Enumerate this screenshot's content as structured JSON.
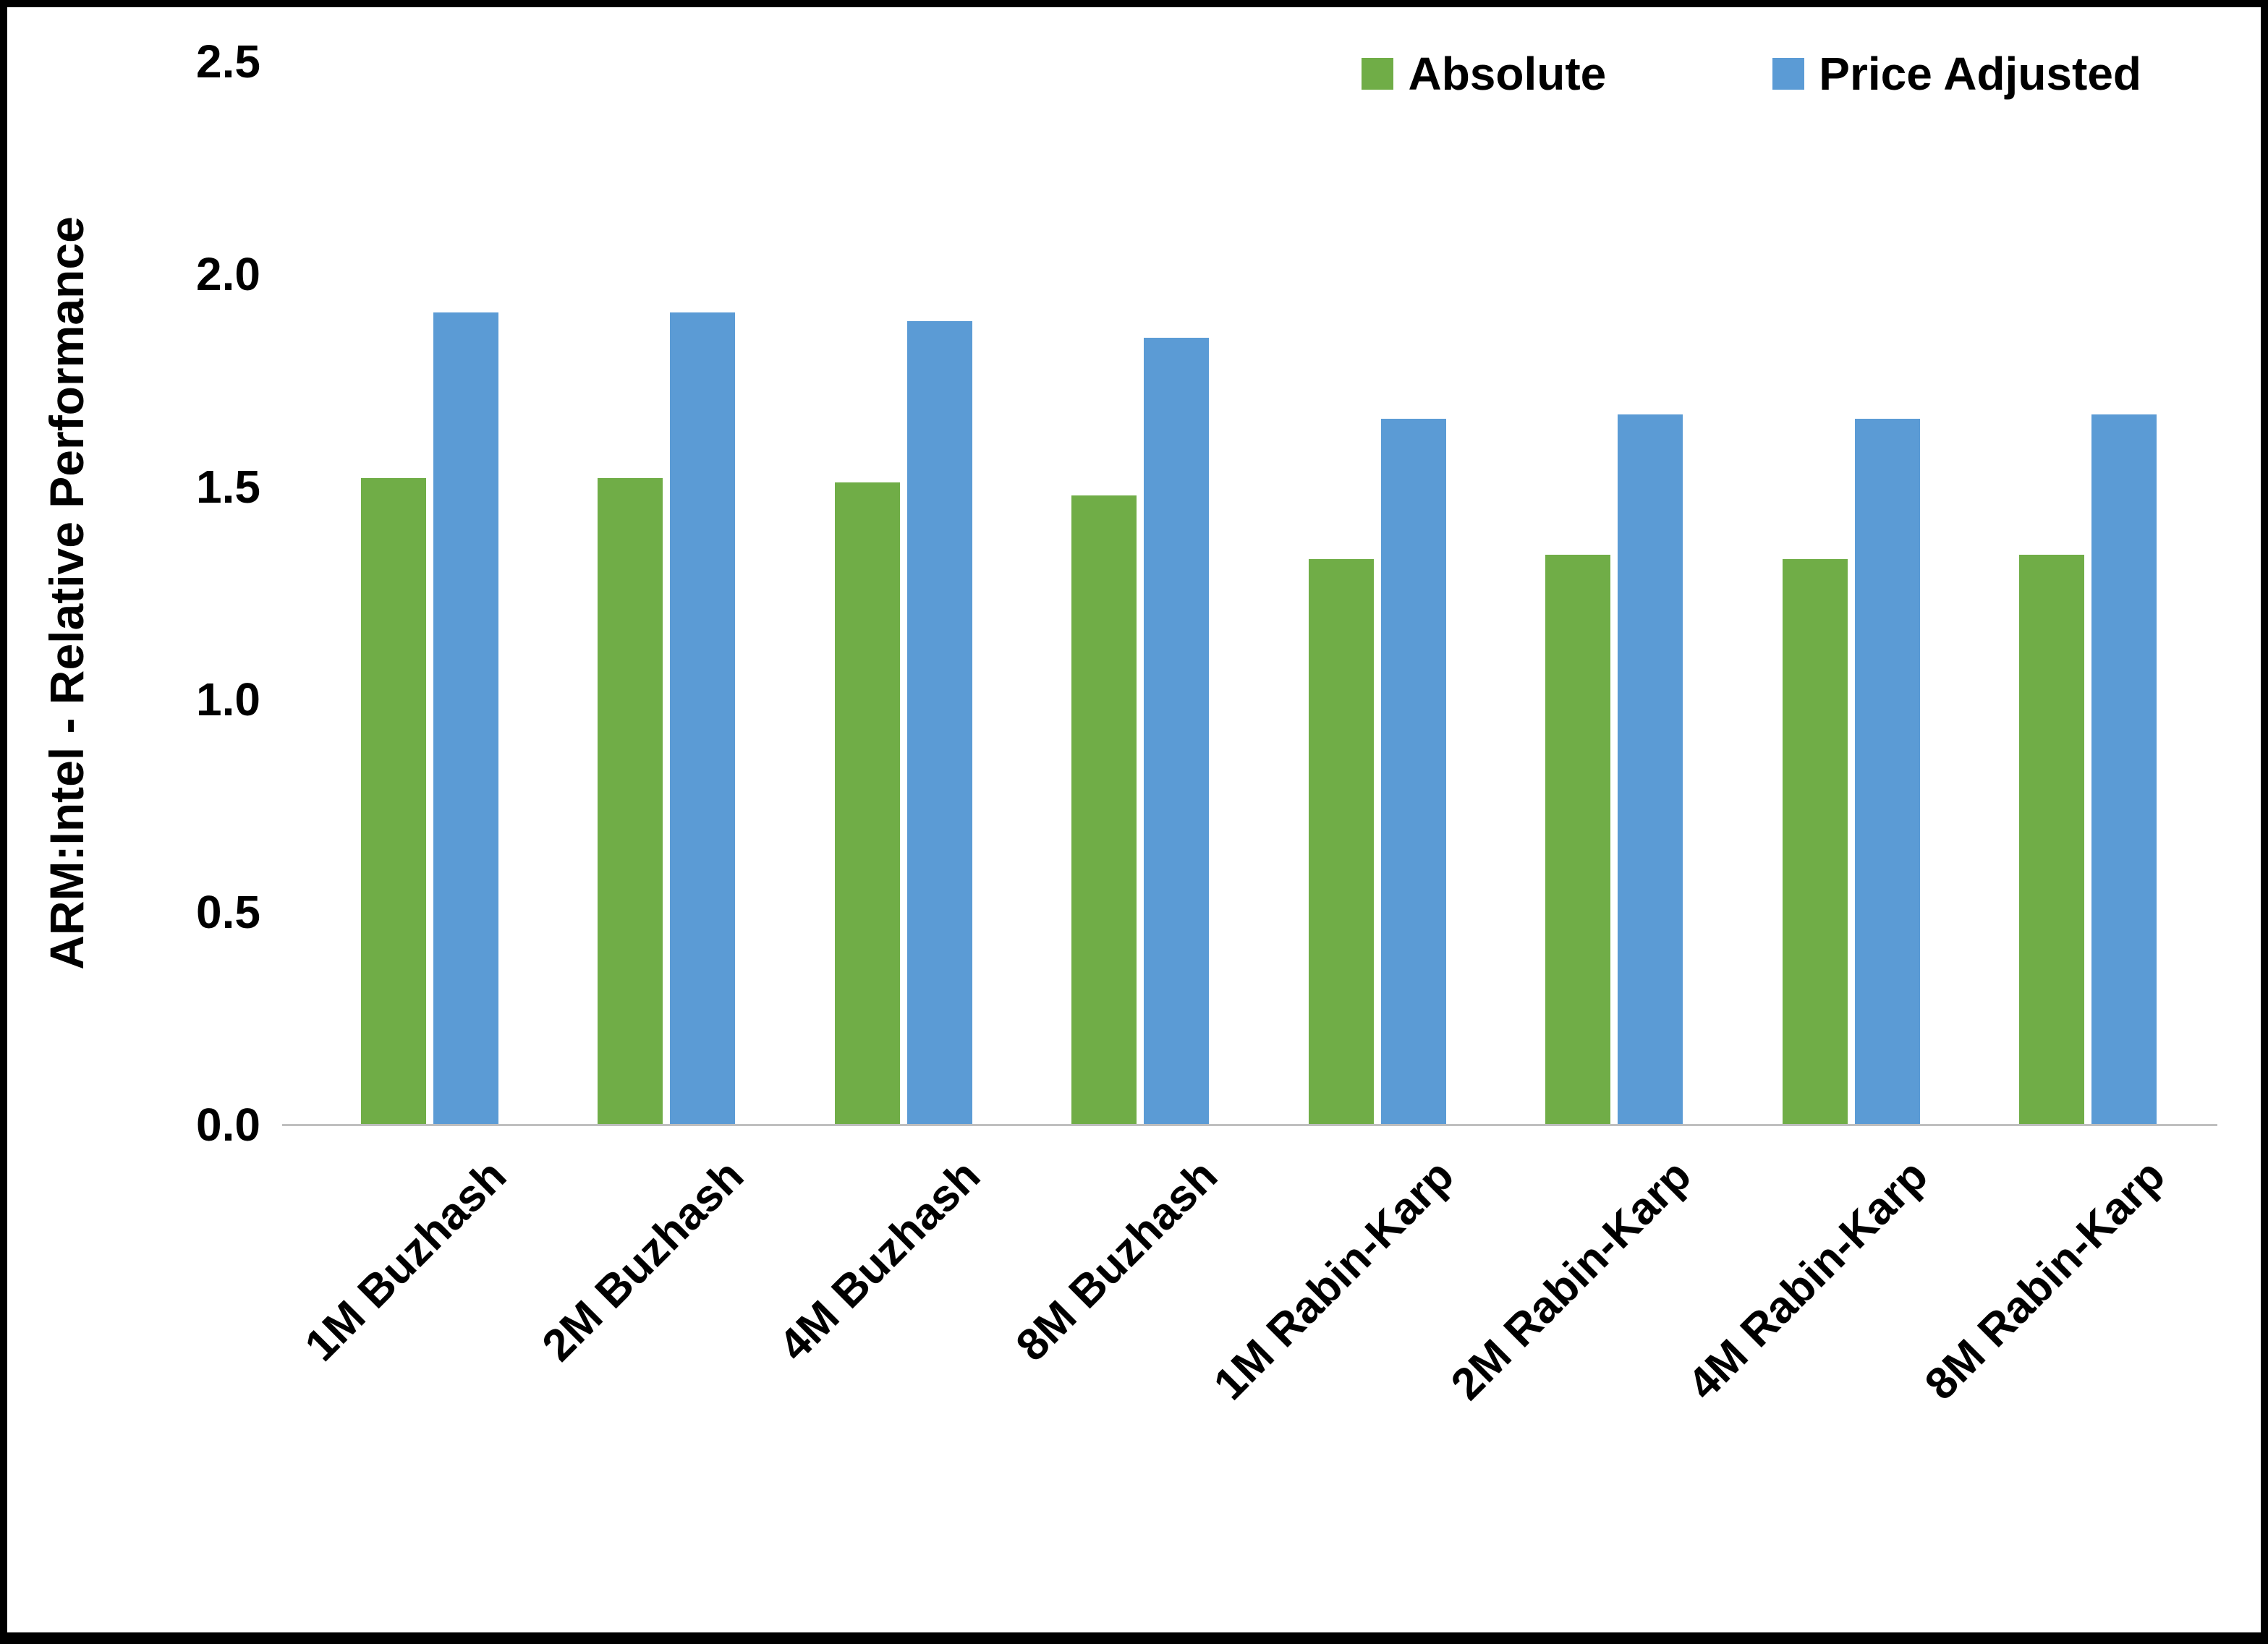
{
  "chart_data": {
    "type": "bar",
    "categories": [
      "1M Buzhash",
      "2M Buzhash",
      "4M Buzhash",
      "8M Buzhash",
      "1M Rabin-Karp",
      "2M Rabin-Karp",
      "4M Rabin-Karp",
      "8M Rabin-Karp"
    ],
    "series": [
      {
        "name": "Absolute",
        "color": "#70AD47",
        "values": [
          1.52,
          1.52,
          1.51,
          1.48,
          1.33,
          1.34,
          1.33,
          1.34
        ]
      },
      {
        "name": "Price Adjusted",
        "color": "#5B9BD5",
        "values": [
          1.91,
          1.91,
          1.89,
          1.85,
          1.66,
          1.67,
          1.66,
          1.67
        ]
      }
    ],
    "title": "",
    "xlabel": "",
    "ylabel": "ARM:Intel - Relative Performance",
    "ylim": [
      0,
      2.5
    ],
    "yticks": [
      0.0,
      0.5,
      1.0,
      1.5,
      2.0,
      2.5
    ],
    "ytick_labels": [
      "0.0",
      "0.5",
      "1.0",
      "1.5",
      "2.0",
      "2.5"
    ],
    "grid": false,
    "legend_position": "top-right",
    "axis_line_color": "#BFBFBF"
  }
}
